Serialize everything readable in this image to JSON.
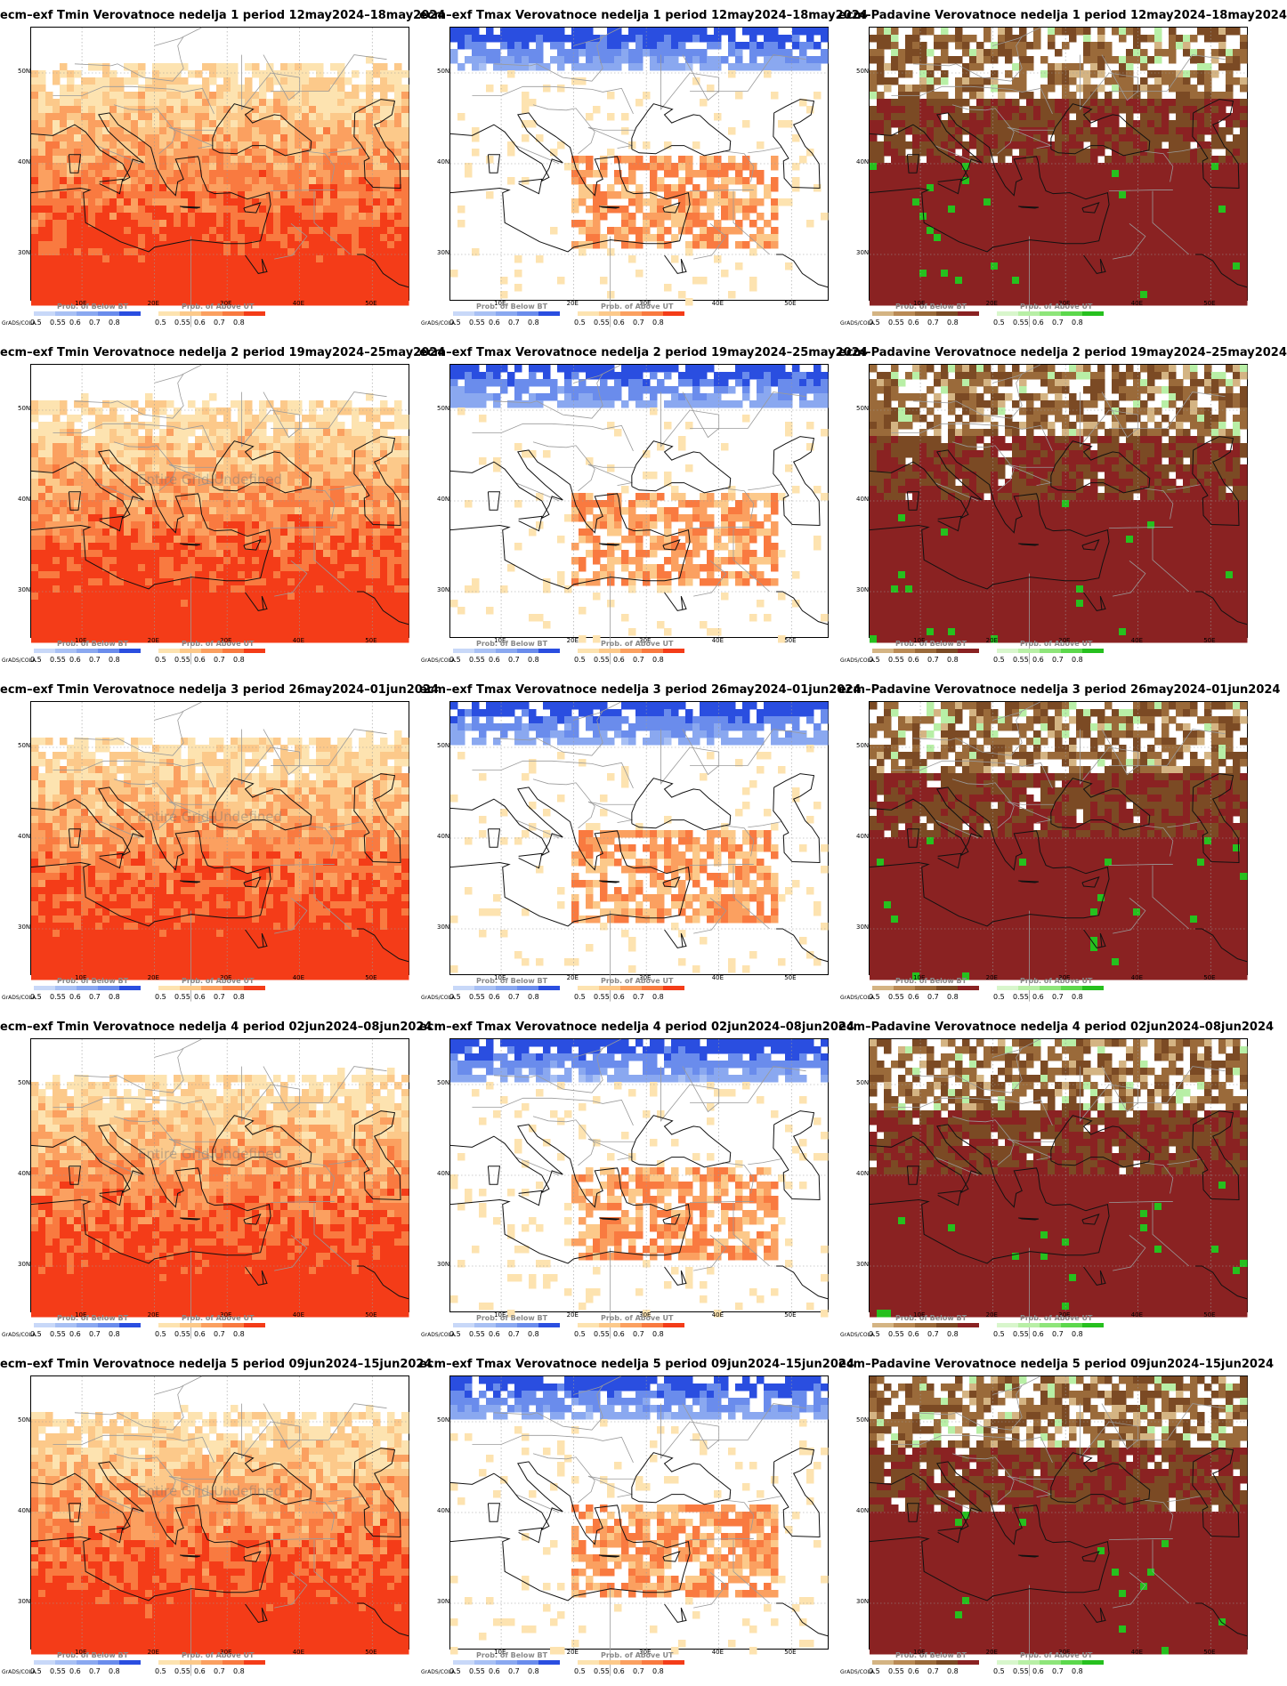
{
  "panels": [
    {
      "row": 0,
      "col": 0,
      "title": "ecm–exf Tmin Verovatnoce nedelja 1 period 12may2024–18may2024",
      "scheme": "tmin",
      "watermark": ""
    },
    {
      "row": 0,
      "col": 1,
      "title": "ecm–exf Tmax Verovatnoce nedelja 1 period 12may2024–18may2024",
      "scheme": "tmax",
      "watermark": ""
    },
    {
      "row": 0,
      "col": 2,
      "title": "ecm–Padavine Verovatnoce nedelja 1 period 12may2024–18may2024",
      "scheme": "precip",
      "watermark": ""
    },
    {
      "row": 1,
      "col": 0,
      "title": "ecm–exf Tmin Verovatnoce nedelja 2 period 19may2024–25may2024",
      "scheme": "tmin",
      "watermark": "Entire Grid Undefined"
    },
    {
      "row": 1,
      "col": 1,
      "title": "ecm–exf Tmax Verovatnoce nedelja 2 period 19may2024–25may2024",
      "scheme": "tmax",
      "watermark": ""
    },
    {
      "row": 1,
      "col": 2,
      "title": "ecm–Padavine Verovatnoce nedelja 2 period 19may2024–25may2024",
      "scheme": "precip",
      "watermark": ""
    },
    {
      "row": 2,
      "col": 0,
      "title": "ecm–exf Tmin Verovatnoce nedelja 3 period 26may2024–01jun2024",
      "scheme": "tmin",
      "watermark": "Entire Grid Undefined"
    },
    {
      "row": 2,
      "col": 1,
      "title": "ecm–exf Tmax Verovatnoce nedelja 3 period 26may2024–01jun2024",
      "scheme": "tmax",
      "watermark": ""
    },
    {
      "row": 2,
      "col": 2,
      "title": "ecm–Padavine Verovatnoce nedelja 3 period 26may2024–01jun2024",
      "scheme": "precip",
      "watermark": ""
    },
    {
      "row": 3,
      "col": 0,
      "title": "ecm–exf Tmin Verovatnoce nedelja 4 period 02jun2024–08jun2024",
      "scheme": "tmin",
      "watermark": "Entire Grid Undefined"
    },
    {
      "row": 3,
      "col": 1,
      "title": "ecm–exf Tmax Verovatnoce nedelja 4 period 02jun2024–08jun2024",
      "scheme": "tmax",
      "watermark": ""
    },
    {
      "row": 3,
      "col": 2,
      "title": "ecm–Padavine Verovatnoce nedelja 4 period 02jun2024–08jun2024",
      "scheme": "precip",
      "watermark": ""
    },
    {
      "row": 4,
      "col": 0,
      "title": "ecm–exf Tmin Verovatnoce nedelja 5 period 09jun2024–15jun2024",
      "scheme": "tmin",
      "watermark": "Entire Grid Undefined"
    },
    {
      "row": 4,
      "col": 1,
      "title": "ecm–exf Tmax Verovatnoce nedelja 5 period 09jun2024–15jun2024",
      "scheme": "tmax",
      "watermark": ""
    },
    {
      "row": 4,
      "col": 2,
      "title": "ecm–Padavine Verovatnoce nedelja 5 period 09jun2024–15jun2024",
      "scheme": "precip",
      "watermark": ""
    }
  ],
  "lat_labels": [
    "50N",
    "40N",
    "30N"
  ],
  "lon_labels": [
    "10E",
    "20E",
    "30E",
    "40E",
    "50E"
  ],
  "legend": {
    "grads_label": "GrADS/COLA",
    "ticks": [
      "0.5",
      "0.55",
      "0.6",
      "0.7",
      "0.8"
    ],
    "below_title": "Prob. of Below BT",
    "above_title": "Prob. of Above UT"
  },
  "colors": {
    "tmin_below": [
      "#c8d8f8",
      "#a8c0f4",
      "#8aa8f0",
      "#6a8cec",
      "#2a4ee0"
    ],
    "tmin_above": [
      "#fde3b0",
      "#fcc98a",
      "#fba060",
      "#f97a40",
      "#f43c18"
    ],
    "tmax_below": [
      "#c8d8f8",
      "#a8c0f4",
      "#8aa8f0",
      "#6a8cec",
      "#2a4ee0"
    ],
    "tmax_above": [
      "#fde3b0",
      "#fcc98a",
      "#fba060",
      "#f97a40",
      "#f43c18"
    ],
    "precip_below": [
      "#d4b483",
      "#b98a55",
      "#9a6a3a",
      "#7b4a24",
      "#8a2222"
    ],
    "precip_above": [
      "#d8f6cc",
      "#b8efa6",
      "#8ee57a",
      "#5cd84c",
      "#26c01e"
    ]
  }
}
